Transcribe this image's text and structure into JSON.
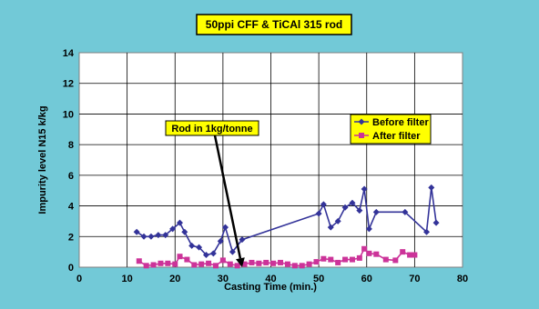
{
  "chart_data": {
    "type": "line",
    "title": "50ppi CFF &  TiCAl 315 rod",
    "xlabel": "Casting Time (min.)",
    "ylabel": "Impurity level N15 k/kg",
    "xlim": [
      0,
      80
    ],
    "ylim": [
      0,
      14
    ],
    "x_ticks": [
      0,
      10,
      20,
      30,
      40,
      50,
      60,
      70,
      80
    ],
    "y_ticks": [
      0,
      2,
      4,
      6,
      8,
      10,
      12,
      14
    ],
    "grid": true,
    "legend_position": "right",
    "annotation": {
      "text": "Rod in 1kg/tonne",
      "arrow_to": {
        "x": 34,
        "y": 0
      }
    },
    "colors": {
      "background": "#72C9D7",
      "plot": "#FFFFFF",
      "label_box": "#FFFF00"
    },
    "series": [
      {
        "name": "Before filter",
        "color": "#333399",
        "marker": "diamond",
        "points": [
          [
            12,
            2.3
          ],
          [
            13.5,
            2.0
          ],
          [
            15,
            2.0
          ],
          [
            16.5,
            2.1
          ],
          [
            18,
            2.1
          ],
          [
            19.5,
            2.5
          ],
          [
            21,
            2.9
          ],
          [
            22,
            2.3
          ],
          [
            23.5,
            1.4
          ],
          [
            25,
            1.3
          ],
          [
            26.5,
            0.8
          ],
          [
            28,
            0.9
          ],
          [
            29.5,
            1.7
          ],
          [
            30.5,
            2.6
          ],
          [
            32,
            1.0
          ],
          [
            34,
            1.8
          ],
          [
            50,
            3.5
          ],
          [
            51,
            4.1
          ],
          [
            52.5,
            2.6
          ],
          [
            54,
            3.0
          ],
          [
            55.5,
            3.9
          ],
          [
            57,
            4.2
          ],
          [
            58.5,
            3.7
          ],
          [
            59.5,
            5.1
          ],
          [
            60.5,
            2.5
          ],
          [
            62,
            3.6
          ],
          [
            68,
            3.6
          ],
          [
            72.5,
            2.3
          ],
          [
            73.5,
            5.2
          ],
          [
            74.5,
            2.9
          ]
        ]
      },
      {
        "name": "After filter",
        "color": "#CC3399",
        "marker": "square",
        "points": [
          [
            12.5,
            0.4
          ],
          [
            14,
            0.1
          ],
          [
            15.5,
            0.15
          ],
          [
            17,
            0.25
          ],
          [
            18.5,
            0.25
          ],
          [
            20,
            0.2
          ],
          [
            21,
            0.7
          ],
          [
            22.5,
            0.5
          ],
          [
            24,
            0.15
          ],
          [
            25.5,
            0.2
          ],
          [
            27,
            0.25
          ],
          [
            28.5,
            0.1
          ],
          [
            30,
            0.45
          ],
          [
            31.5,
            0.2
          ],
          [
            33,
            0.1
          ],
          [
            34.5,
            0.2
          ],
          [
            36,
            0.3
          ],
          [
            37.5,
            0.25
          ],
          [
            39,
            0.3
          ],
          [
            40.5,
            0.25
          ],
          [
            42,
            0.3
          ],
          [
            43.5,
            0.2
          ],
          [
            45,
            0.1
          ],
          [
            46.5,
            0.1
          ],
          [
            48,
            0.2
          ],
          [
            49.5,
            0.35
          ],
          [
            51,
            0.55
          ],
          [
            52.5,
            0.5
          ],
          [
            54,
            0.3
          ],
          [
            55.5,
            0.5
          ],
          [
            57,
            0.5
          ],
          [
            58.5,
            0.6
          ],
          [
            59.5,
            1.2
          ],
          [
            60.5,
            0.9
          ],
          [
            62,
            0.85
          ],
          [
            64,
            0.5
          ],
          [
            66,
            0.45
          ],
          [
            67.5,
            1.0
          ],
          [
            69,
            0.8
          ],
          [
            70,
            0.8
          ]
        ]
      }
    ]
  }
}
